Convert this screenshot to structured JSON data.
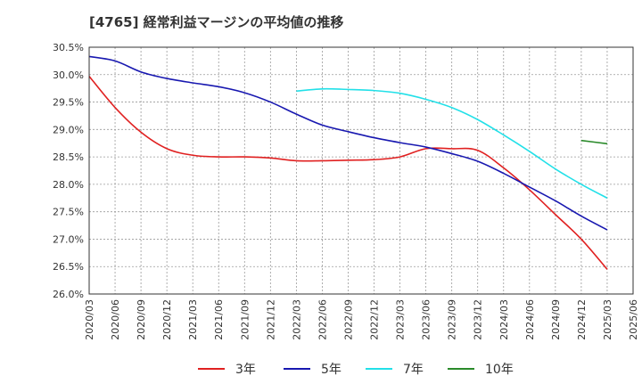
{
  "chart_data": {
    "type": "line",
    "title": "[4765]  経常利益マージンの平均値の推移",
    "xlabel": "",
    "ylabel": "",
    "ylim": [
      26.0,
      30.5
    ],
    "y_ticks": [
      "30.5%",
      "30.0%",
      "29.5%",
      "29.0%",
      "28.5%",
      "28.0%",
      "27.5%",
      "27.0%",
      "26.5%",
      "26.0%"
    ],
    "x_ticks": [
      "2020/03",
      "2020/06",
      "2020/09",
      "2020/12",
      "2021/03",
      "2021/06",
      "2021/09",
      "2021/12",
      "2022/03",
      "2022/06",
      "2022/09",
      "2022/12",
      "2023/03",
      "2023/06",
      "2023/09",
      "2023/12",
      "2024/03",
      "2024/06",
      "2024/09",
      "2024/12",
      "2025/03",
      "2025/06"
    ],
    "grid": true,
    "legend_position": "bottom",
    "series": [
      {
        "name": "3年",
        "color": "#e02020",
        "x": [
          "2020/03",
          "2020/06",
          "2020/09",
          "2020/12",
          "2021/03",
          "2021/06",
          "2021/09",
          "2021/12",
          "2022/03",
          "2022/06",
          "2022/09",
          "2022/12",
          "2023/03",
          "2023/06",
          "2023/09",
          "2023/12",
          "2024/03",
          "2024/06",
          "2024/09",
          "2024/12",
          "2025/03"
        ],
        "values": [
          29.97,
          29.4,
          28.95,
          28.65,
          28.53,
          28.5,
          28.5,
          28.48,
          28.43,
          28.43,
          28.44,
          28.45,
          28.5,
          28.65,
          28.65,
          28.62,
          28.3,
          27.9,
          27.45,
          27.0,
          26.45
        ]
      },
      {
        "name": "5年",
        "color": "#1818b0",
        "x": [
          "2020/03",
          "2020/06",
          "2020/09",
          "2020/12",
          "2021/03",
          "2021/06",
          "2021/09",
          "2021/12",
          "2022/03",
          "2022/06",
          "2022/09",
          "2022/12",
          "2023/03",
          "2023/06",
          "2023/09",
          "2023/12",
          "2024/03",
          "2024/06",
          "2024/09",
          "2024/12",
          "2025/03"
        ],
        "values": [
          30.33,
          30.25,
          30.05,
          29.93,
          29.85,
          29.78,
          29.67,
          29.5,
          29.28,
          29.08,
          28.96,
          28.85,
          28.76,
          28.68,
          28.56,
          28.42,
          28.2,
          27.95,
          27.7,
          27.42,
          27.17
        ]
      },
      {
        "name": "7年",
        "color": "#22e0e8",
        "x": [
          "2022/03",
          "2022/06",
          "2022/09",
          "2022/12",
          "2023/03",
          "2023/06",
          "2023/09",
          "2023/12",
          "2024/03",
          "2024/06",
          "2024/09",
          "2024/12",
          "2025/03"
        ],
        "values": [
          29.7,
          29.74,
          29.73,
          29.71,
          29.66,
          29.55,
          29.4,
          29.18,
          28.9,
          28.6,
          28.28,
          28.0,
          27.75
        ]
      },
      {
        "name": "10年",
        "color": "#2a8a2a",
        "x": [
          "2024/12",
          "2025/03"
        ],
        "values": [
          28.8,
          28.74
        ]
      }
    ]
  }
}
